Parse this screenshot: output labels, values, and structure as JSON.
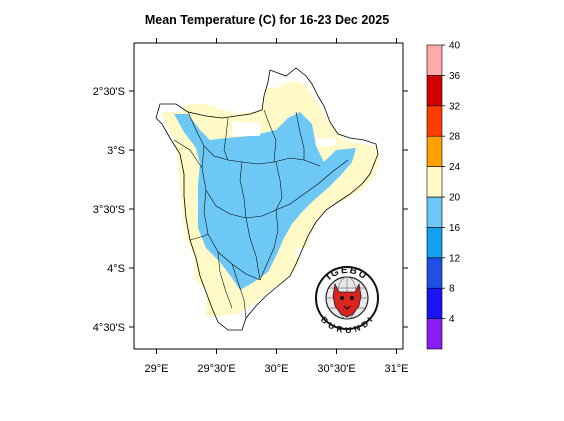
{
  "title": "Mean Temperature (C) for 16-23 Dec 2025",
  "x_axis": {
    "ticks": [
      {
        "value": 29.0,
        "label": "29°E"
      },
      {
        "value": 29.5,
        "label": "29°30'E"
      },
      {
        "value": 30.0,
        "label": "30°E"
      },
      {
        "value": 30.5,
        "label": "30°30'E"
      },
      {
        "value": 31.0,
        "label": "31°E"
      }
    ]
  },
  "y_axis": {
    "ticks": [
      {
        "value": -2.5,
        "label": "2°30'S"
      },
      {
        "value": -3.0,
        "label": "3°S"
      },
      {
        "value": -3.5,
        "label": "3°30'S"
      },
      {
        "value": -4.0,
        "label": "4°S"
      },
      {
        "value": -4.5,
        "label": "4°30'S"
      }
    ]
  },
  "colorbar": {
    "labels": [
      "4",
      "8",
      "12",
      "16",
      "20",
      "24",
      "28",
      "32",
      "36",
      "40"
    ],
    "colors": [
      "#8a1ef0",
      "#1a14f5",
      "#1e50e6",
      "#14a0f0",
      "#6ec8f5",
      "#fffac8",
      "#ffa000",
      "#ff3c00",
      "#d20000",
      "#ffaaaa"
    ]
  },
  "logo": {
    "top_text": "IGEBU",
    "bottom_text": "BURUNDI"
  },
  "legend_colors": {
    "temp_16_20": "#6ec8f5",
    "temp_20_24": "#fffac8"
  }
}
